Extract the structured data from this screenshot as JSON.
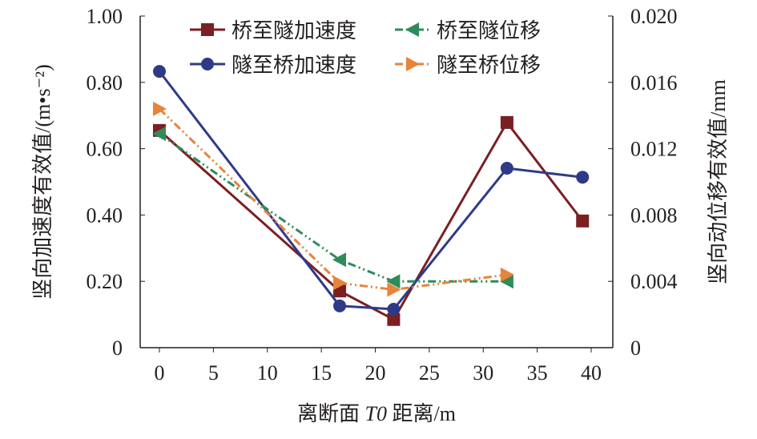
{
  "chart_data": {
    "type": "line",
    "xlabel_parts": [
      "离断面 ",
      "T0",
      " 距离/m"
    ],
    "ylabel": "竖向加速度有效值/(m•s⁻²)",
    "y2label": "竖向动位移有效值/mm",
    "xlim": [
      -2,
      42
    ],
    "ylim": [
      0,
      1.0
    ],
    "y2lim": [
      0,
      0.02
    ],
    "xticks": [
      "0",
      "5",
      "10",
      "15",
      "20",
      "25",
      "30",
      "35",
      "40"
    ],
    "xtick_values": [
      0,
      5,
      10,
      15,
      20,
      25,
      30,
      35,
      40
    ],
    "yticks": [
      "0",
      "0.20",
      "0.40",
      "0.60",
      "0.80",
      "1.00"
    ],
    "ytick_values": [
      0,
      0.2,
      0.4,
      0.6,
      0.8,
      1.0
    ],
    "y2ticks": [
      "0",
      "0.004",
      "0.008",
      "0.012",
      "0.016",
      "0.020"
    ],
    "y2tick_values": [
      0,
      0.004,
      0.008,
      0.012,
      0.016,
      0.02
    ],
    "legend_placement": "top",
    "series": [
      {
        "name": "桥至隧加速度",
        "axis": "left",
        "color": "#7b1f22",
        "marker": "square",
        "dash": "",
        "x": [
          0,
          16.7,
          21.7,
          32.2,
          39.2
        ],
        "y": [
          0.655,
          0.171,
          0.085,
          0.679,
          0.382
        ]
      },
      {
        "name": "隧至桥加速度",
        "axis": "left",
        "color": "#2e3a87",
        "marker": "circle",
        "dash": "",
        "x": [
          0,
          16.7,
          21.7,
          32.2,
          39.2
        ],
        "y": [
          0.833,
          0.126,
          0.116,
          0.541,
          0.514
        ]
      },
      {
        "name": "桥至隧位移",
        "axis": "right",
        "color": "#2e8b5a",
        "marker": "triangle-left",
        "dash": "10,4,2,4,2,4",
        "x": [
          0,
          16.7,
          21.7,
          32.2
        ],
        "y": [
          0.0129,
          0.0053,
          0.004,
          0.004
        ]
      },
      {
        "name": "隧至桥位移",
        "axis": "right",
        "color": "#e8833a",
        "marker": "triangle-right",
        "dash": "10,4,2,4,2,4",
        "x": [
          0,
          16.7,
          21.7,
          32.2
        ],
        "y": [
          0.0144,
          0.0039,
          0.0035,
          0.0044
        ]
      }
    ]
  }
}
